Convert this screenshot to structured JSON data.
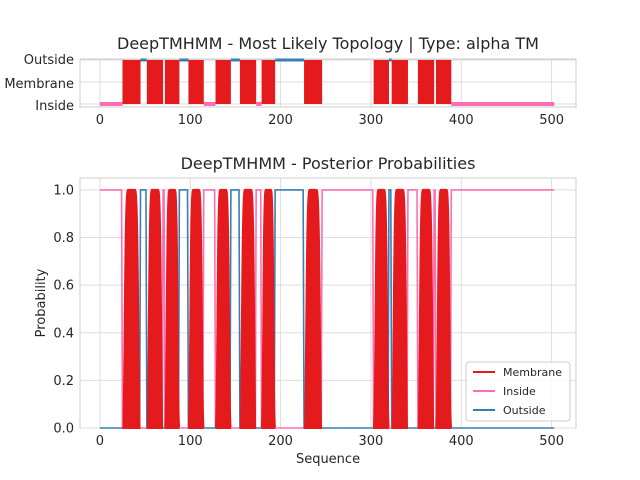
{
  "chart_data": [
    {
      "type": "topology",
      "title": "DeepTMHMM - Most Likely Topology | Type: alpha TM",
      "xlim": [
        -22,
        527
      ],
      "xticks": [
        0,
        100,
        200,
        300,
        400,
        500
      ],
      "y_categories": [
        "Inside",
        "Membrane",
        "Outside"
      ],
      "grid": true,
      "inside_color": "#ff6eb4",
      "outside_color": "#377eb8",
      "membrane_color": "#e41a1c",
      "membrane_segments": [
        [
          25,
          45
        ],
        [
          52,
          70
        ],
        [
          72,
          88
        ],
        [
          98,
          115
        ],
        [
          128,
          145
        ],
        [
          155,
          173
        ],
        [
          179,
          194
        ],
        [
          226,
          246
        ],
        [
          303,
          320
        ],
        [
          323,
          341
        ],
        [
          352,
          370
        ],
        [
          372,
          389
        ]
      ],
      "inside_segments": [
        [
          0,
          25
        ],
        [
          115,
          128
        ],
        [
          173,
          179
        ],
        [
          389,
          503
        ]
      ],
      "outside_segments": [
        [
          45,
          52
        ],
        [
          88,
          98
        ],
        [
          145,
          155
        ],
        [
          194,
          226
        ],
        [
          320,
          323
        ]
      ]
    },
    {
      "type": "line",
      "title": "DeepTMHMM - Posterior Probabilities",
      "xlabel": "Sequence",
      "ylabel": "Probability",
      "xlim": [
        -22,
        527
      ],
      "ylim": [
        0,
        1.05
      ],
      "xticks": [
        0,
        100,
        200,
        300,
        400,
        500
      ],
      "yticks": [
        0.0,
        0.2,
        0.4,
        0.6,
        0.8,
        1.0
      ],
      "grid": true,
      "legend_position": "lower-right",
      "series": [
        {
          "name": "Membrane",
          "color": "#e41a1c"
        },
        {
          "name": "Inside",
          "color": "#ff6eb4"
        },
        {
          "name": "Outside",
          "color": "#377eb8"
        }
      ]
    }
  ]
}
